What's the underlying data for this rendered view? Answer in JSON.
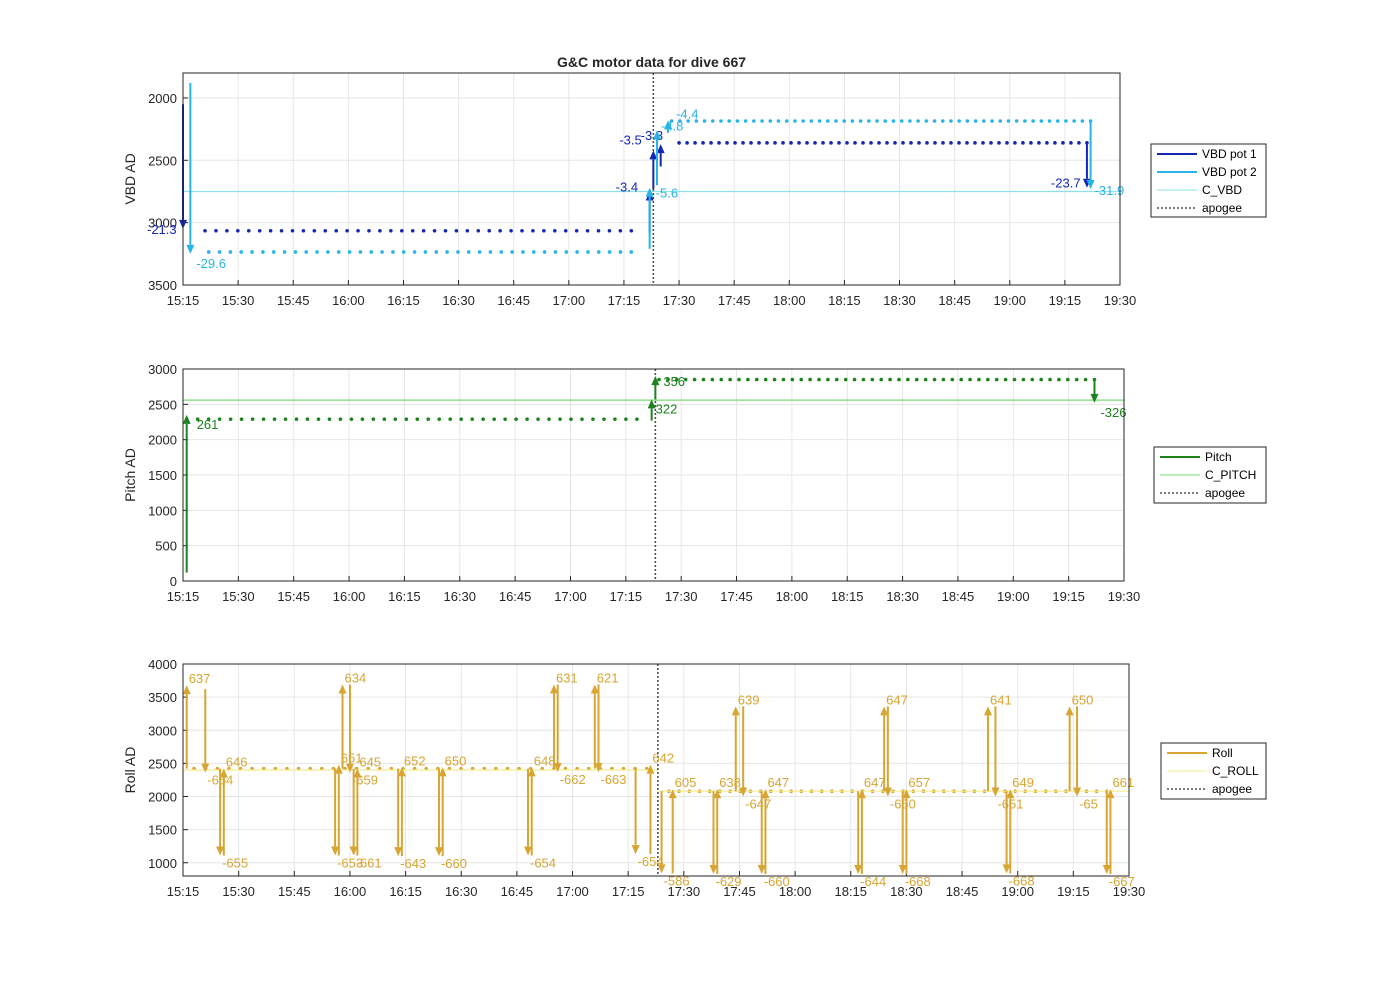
{
  "chart_data": [
    {
      "type": "line",
      "title": "G&C motor data for dive 667",
      "ylabel": "VBD AD",
      "xlim": [
        "15:15",
        "19:30"
      ],
      "ylim": [
        3500,
        1800
      ],
      "yreverse": true,
      "yticks": [
        2000,
        2500,
        3000,
        3500
      ],
      "xticks": [
        "15:15",
        "15:30",
        "15:45",
        "16:00",
        "16:15",
        "16:30",
        "16:45",
        "17:00",
        "17:15",
        "17:30",
        "17:45",
        "18:00",
        "18:15",
        "18:30",
        "18:45",
        "19:00",
        "19:15",
        "19:30"
      ],
      "grid": true,
      "legend_position": "outside-right",
      "apogee": "17:23",
      "colors": {
        "VBD pot 1": "#1428b4",
        "VBD pot 2": "#28b4e6",
        "C_VBD": "#8ce1eb",
        "apogee": "#505050"
      },
      "series": [
        {
          "name": "VBD pot 1",
          "kind": "dots",
          "segments": [
            {
              "x0": "15:21",
              "x1": "17:17",
              "y": 3065,
              "n": 40
            },
            {
              "x0": "17:30",
              "x1": "19:21",
              "y": 2360,
              "n": 52
            }
          ]
        },
        {
          "name": "VBD pot 2",
          "kind": "dots",
          "segments": [
            {
              "x0": "15:22",
              "x1": "17:17",
              "y": 3235,
              "n": 40
            },
            {
              "x0": "17:28",
              "x1": "19:22",
              "y": 2185,
              "n": 52
            }
          ]
        },
        {
          "name": "C_VBD",
          "kind": "hline",
          "y": 2750
        },
        {
          "name": "apogee",
          "kind": "vline",
          "x": "17:23"
        }
      ],
      "arrows": [
        {
          "series": "VBD pot 1",
          "x": "15:15",
          "y0": 2050,
          "y1": 3050,
          "label": "-21.3"
        },
        {
          "series": "VBD pot 2",
          "x": "15:17",
          "y0": 1880,
          "y1": 3250,
          "label": "-29.6"
        },
        {
          "series": "VBD pot 1",
          "x": "17:22",
          "y0": 3080,
          "y1": 2750,
          "label": "-3.4"
        },
        {
          "series": "VBD pot 1",
          "x": "17:23",
          "y0": 2730,
          "y1": 2420,
          "label": "-3.5"
        },
        {
          "series": "VBD pot 1",
          "x": "17:25",
          "y0": 2550,
          "y1": 2370,
          "label": "-3.3"
        },
        {
          "series": "VBD pot 2",
          "x": "17:22",
          "y0": 3210,
          "y1": 2720,
          "label": "-5.6"
        },
        {
          "series": "VBD pot 2",
          "x": "17:24",
          "y0": 2700,
          "y1": 2260,
          "label": "-4.8"
        },
        {
          "series": "VBD pot 2",
          "x": "17:27",
          "y0": 2280,
          "y1": 2180,
          "label": "-4.4"
        },
        {
          "series": "VBD pot 1",
          "x": "19:21",
          "y0": 2360,
          "y1": 2720,
          "label": "-23.7"
        },
        {
          "series": "VBD pot 2",
          "x": "19:22",
          "y0": 2185,
          "y1": 2730,
          "label": "-31.9"
        }
      ]
    },
    {
      "type": "line",
      "title": "",
      "ylabel": "Pitch AD",
      "xlim": [
        "15:15",
        "19:30"
      ],
      "ylim": [
        0,
        3000
      ],
      "yticks": [
        0,
        500,
        1000,
        1500,
        2000,
        2500,
        3000
      ],
      "xticks": [
        "15:15",
        "15:30",
        "15:45",
        "16:00",
        "16:15",
        "16:30",
        "16:45",
        "17:00",
        "17:15",
        "17:30",
        "17:45",
        "18:00",
        "18:15",
        "18:30",
        "18:45",
        "19:00",
        "19:15",
        "19:30"
      ],
      "grid": true,
      "legend_position": "outside-right",
      "apogee": "17:23",
      "colors": {
        "Pitch": "#1e821e",
        "C_PITCH": "#78dc78",
        "apogee": "#505050"
      },
      "series": [
        {
          "name": "Pitch",
          "kind": "dots",
          "segments": [
            {
              "x0": "15:16",
              "x1": "17:18",
              "y": 2290,
              "n": 42
            },
            {
              "x0": "17:24",
              "x1": "19:22",
              "y": 2850,
              "n": 50
            }
          ]
        },
        {
          "name": "C_PITCH",
          "kind": "hline",
          "y": 2560
        },
        {
          "name": "apogee",
          "kind": "vline",
          "x": "17:23"
        }
      ],
      "arrows": [
        {
          "series": "Pitch",
          "x": "15:16",
          "y0": 120,
          "y1": 2350,
          "label": "261"
        },
        {
          "series": "Pitch",
          "x": "17:22",
          "y0": 2270,
          "y1": 2570,
          "label": "322"
        },
        {
          "series": "Pitch",
          "x": "17:23",
          "y0": 2570,
          "y1": 2900,
          "label": "356"
        },
        {
          "series": "Pitch",
          "x": "19:22",
          "y0": 2850,
          "y1": 2520,
          "label": "-326"
        }
      ]
    },
    {
      "type": "line",
      "title": "",
      "ylabel": "Roll AD",
      "xlim": [
        "15:15",
        "19:30"
      ],
      "ylim": [
        800,
        4000
      ],
      "yticks": [
        1000,
        1500,
        2000,
        2500,
        3000,
        3500,
        4000
      ],
      "xticks": [
        "15:15",
        "15:30",
        "15:45",
        "16:00",
        "16:15",
        "16:30",
        "16:45",
        "17:00",
        "17:15",
        "17:30",
        "17:45",
        "18:00",
        "18:15",
        "18:30",
        "18:45",
        "19:00",
        "19:15",
        "19:30"
      ],
      "grid": true,
      "legend_position": "outside-right",
      "apogee": "17:23",
      "colors": {
        "Roll": "#d7a532",
        "C_ROLL": "#f5eb91",
        "apogee": "#505050"
      },
      "series": [
        {
          "name": "Roll",
          "kind": "dots",
          "segments": [
            {
              "x0": "15:18",
              "x1": "17:20",
              "y": 2420,
              "n": 40
            },
            {
              "x0": "17:26",
              "x1": "19:24",
              "y": 2080,
              "n": 44
            }
          ]
        },
        {
          "name": "C_ROLL",
          "kind": "hline",
          "y": 2400,
          "x0": "15:15",
          "x1": "17:23"
        },
        {
          "name": "C_ROLL",
          "kind": "hline",
          "y": 2080,
          "x0": "17:23",
          "x1": "19:30"
        },
        {
          "name": "apogee",
          "kind": "vline",
          "x": "17:23"
        }
      ],
      "arrows": [
        {
          "x": "15:16",
          "y0": 2420,
          "y1": 3680,
          "label": "637"
        },
        {
          "x": "15:21",
          "y0": 3620,
          "y1": 2360,
          "label": "-664"
        },
        {
          "x": "15:25",
          "y0": 2420,
          "y1": 1110,
          "label": "-655"
        },
        {
          "x": "15:26",
          "y0": 1110,
          "y1": 2420,
          "label": "646"
        },
        {
          "x": "15:56",
          "y0": 2420,
          "y1": 1110,
          "label": "-653"
        },
        {
          "x": "15:57",
          "y0": 1110,
          "y1": 2480,
          "label": "651"
        },
        {
          "x": "15:58",
          "y0": 2420,
          "y1": 3690,
          "label": "634"
        },
        {
          "x": "16:00",
          "y0": 3690,
          "y1": 2360,
          "label": "-659"
        },
        {
          "x": "16:01",
          "y0": 2420,
          "y1": 1110,
          "label": "-661"
        },
        {
          "x": "16:02",
          "y0": 1110,
          "y1": 2420,
          "label": "645"
        },
        {
          "x": "16:13",
          "y0": 2420,
          "y1": 1100,
          "label": "-643"
        },
        {
          "x": "16:14",
          "y0": 1100,
          "y1": 2440,
          "label": "652"
        },
        {
          "x": "16:24",
          "y0": 2420,
          "y1": 1100,
          "label": "-660"
        },
        {
          "x": "16:25",
          "y0": 1100,
          "y1": 2440,
          "label": "650"
        },
        {
          "x": "16:48",
          "y0": 2420,
          "y1": 1110,
          "label": "-654"
        },
        {
          "x": "16:49",
          "y0": 1110,
          "y1": 2440,
          "label": "648"
        },
        {
          "x": "16:55",
          "y0": 2420,
          "y1": 3690,
          "label": "631"
        },
        {
          "x": "16:56",
          "y0": 3690,
          "y1": 2370,
          "label": "-662"
        },
        {
          "x": "17:06",
          "y0": 2420,
          "y1": 3690,
          "label": "621"
        },
        {
          "x": "17:07",
          "y0": 3690,
          "y1": 2370,
          "label": "-663"
        },
        {
          "x": "17:17",
          "y0": 2420,
          "y1": 1130,
          "label": "-654"
        },
        {
          "x": "17:21",
          "y0": 1130,
          "y1": 2480,
          "label": "642"
        },
        {
          "x": "17:24",
          "y0": 2080,
          "y1": 840,
          "label": "-586"
        },
        {
          "x": "17:27",
          "y0": 840,
          "y1": 2110,
          "label": "605"
        },
        {
          "x": "17:38",
          "y0": 2080,
          "y1": 830,
          "label": "-629"
        },
        {
          "x": "17:39",
          "y0": 830,
          "y1": 2110,
          "label": "638"
        },
        {
          "x": "17:44",
          "y0": 2080,
          "y1": 3360,
          "label": "639"
        },
        {
          "x": "17:46",
          "y0": 3360,
          "y1": 2000,
          "label": "-647"
        },
        {
          "x": "17:51",
          "y0": 2080,
          "y1": 830,
          "label": "-660"
        },
        {
          "x": "17:52",
          "y0": 830,
          "y1": 2110,
          "label": "647"
        },
        {
          "x": "18:17",
          "y0": 2080,
          "y1": 830,
          "label": "-644"
        },
        {
          "x": "18:18",
          "y0": 830,
          "y1": 2110,
          "label": "647"
        },
        {
          "x": "18:24",
          "y0": 2080,
          "y1": 3360,
          "label": "647"
        },
        {
          "x": "18:25",
          "y0": 3360,
          "y1": 2000,
          "label": "-650"
        },
        {
          "x": "18:29",
          "y0": 2080,
          "y1": 830,
          "label": "-668"
        },
        {
          "x": "18:30",
          "y0": 830,
          "y1": 2110,
          "label": "657"
        },
        {
          "x": "18:52",
          "y0": 2080,
          "y1": 3360,
          "label": "641"
        },
        {
          "x": "18:54",
          "y0": 3360,
          "y1": 2000,
          "label": "-651"
        },
        {
          "x": "18:57",
          "y0": 2080,
          "y1": 840,
          "label": "-668"
        },
        {
          "x": "18:58",
          "y0": 840,
          "y1": 2110,
          "label": "649"
        },
        {
          "x": "19:14",
          "y0": 2080,
          "y1": 3360,
          "label": "650"
        },
        {
          "x": "19:16",
          "y0": 3360,
          "y1": 2000,
          "label": "-65"
        },
        {
          "x": "19:24",
          "y0": 2080,
          "y1": 830,
          "label": "-667"
        },
        {
          "x": "19:25",
          "y0": 830,
          "y1": 2110,
          "label": "661"
        }
      ]
    }
  ]
}
